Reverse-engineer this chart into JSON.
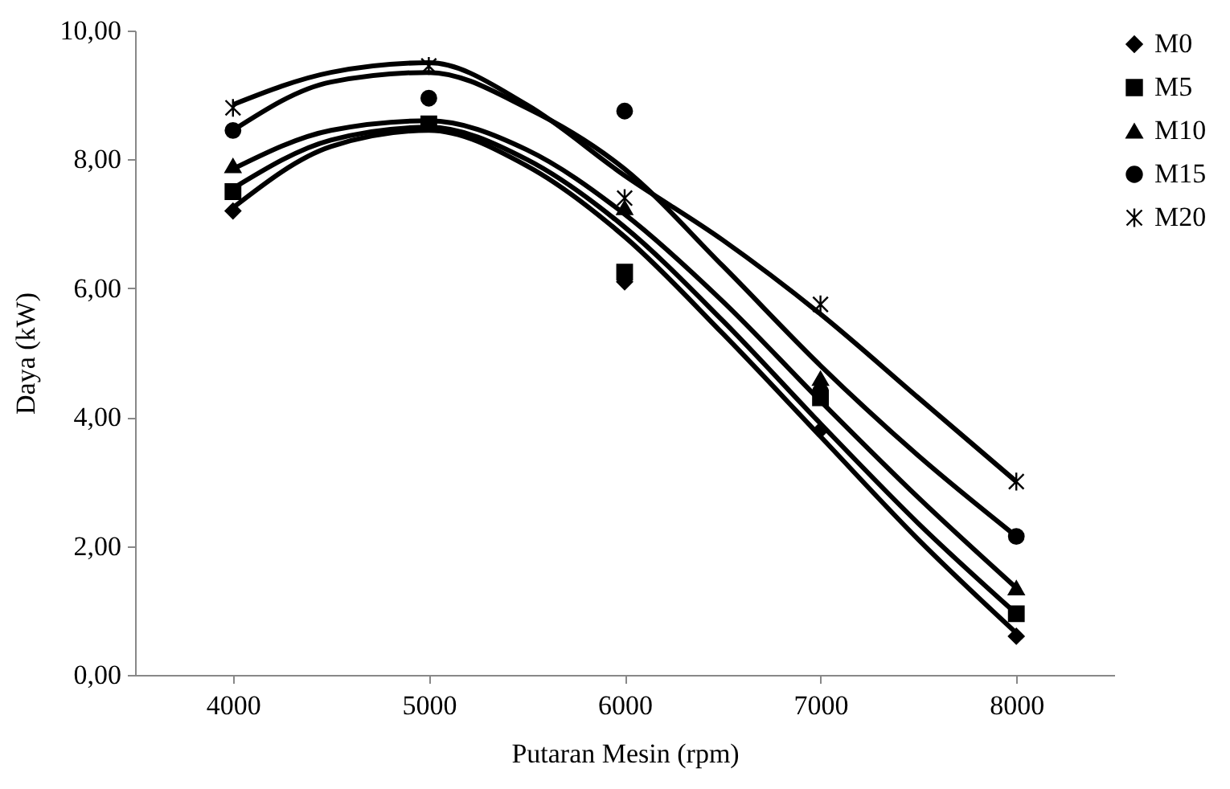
{
  "chart_data": {
    "type": "scatter",
    "xlabel": "Putaran Mesin (rpm)",
    "ylabel": "Daya (kW)",
    "x": [
      4000,
      5000,
      6000,
      7000,
      8000
    ],
    "xlim": [
      3500,
      8500
    ],
    "xticks": [
      4000,
      5000,
      6000,
      7000,
      8000
    ],
    "ylim": [
      0,
      10
    ],
    "yticks": [
      {
        "value": 0,
        "label": "0,00"
      },
      {
        "value": 2,
        "label": "2,00"
      },
      {
        "value": 4,
        "label": "4,00"
      },
      {
        "value": 6,
        "label": "6,00"
      },
      {
        "value": 8,
        "label": "8,00"
      },
      {
        "value": 10,
        "label": "10,00"
      }
    ],
    "grid": false,
    "legend": "right",
    "series": [
      {
        "name": "M0",
        "marker": "diamond",
        "color": "#000000",
        "values": [
          7.2,
          null,
          6.1,
          3.8,
          0.6
        ]
      },
      {
        "name": "M5",
        "marker": "square",
        "color": "#000000",
        "values": [
          7.5,
          8.55,
          6.25,
          4.3,
          0.95
        ]
      },
      {
        "name": "M10",
        "marker": "triangle",
        "color": "#000000",
        "values": [
          7.9,
          null,
          7.25,
          4.6,
          1.35
        ]
      },
      {
        "name": "M15",
        "marker": "circle",
        "color": "#000000",
        "values": [
          8.45,
          8.95,
          8.75,
          4.4,
          2.15
        ]
      },
      {
        "name": "M20",
        "marker": "cross",
        "color": "#000000",
        "values": [
          8.8,
          9.45,
          7.4,
          5.75,
          3.0
        ]
      },
      {
        "type": "line",
        "marker": "none",
        "line_style": "solid",
        "color": "#000000",
        "x": [
          4000,
          4500,
          5000,
          5500,
          6000,
          6500,
          7000,
          7500,
          8000
        ],
        "values": [
          7.25,
          8.2,
          8.45,
          7.9,
          6.8,
          5.3,
          3.7,
          2.1,
          0.65
        ]
      },
      {
        "type": "line",
        "marker": "none",
        "line_style": "solid",
        "color": "#000000",
        "x": [
          4000,
          4500,
          5000,
          5500,
          6000,
          6500,
          7000,
          7500,
          8000
        ],
        "values": [
          7.55,
          8.3,
          8.5,
          8.0,
          6.95,
          5.5,
          3.9,
          2.35,
          0.95
        ]
      },
      {
        "type": "line",
        "marker": "none",
        "line_style": "solid",
        "color": "#000000",
        "x": [
          4000,
          4500,
          5000,
          5500,
          6000,
          6500,
          7000,
          7500,
          8000
        ],
        "values": [
          7.85,
          8.45,
          8.6,
          8.15,
          7.15,
          5.8,
          4.25,
          2.75,
          1.35
        ]
      },
      {
        "type": "line",
        "marker": "none",
        "line_style": "solid",
        "color": "#000000",
        "x": [
          4000,
          4500,
          5000,
          5500,
          6000,
          6500,
          7000,
          7500,
          8000
        ],
        "values": [
          8.45,
          9.2,
          9.35,
          8.8,
          7.85,
          6.35,
          4.8,
          3.4,
          2.15
        ]
      },
      {
        "type": "line",
        "marker": "none",
        "line_style": "solid",
        "color": "#000000",
        "x": [
          4000,
          4500,
          5000,
          5500,
          6000,
          6500,
          7000,
          7500,
          8000
        ],
        "values": [
          8.85,
          9.35,
          9.5,
          8.85,
          7.75,
          6.75,
          5.6,
          4.3,
          3.0
        ]
      }
    ]
  }
}
